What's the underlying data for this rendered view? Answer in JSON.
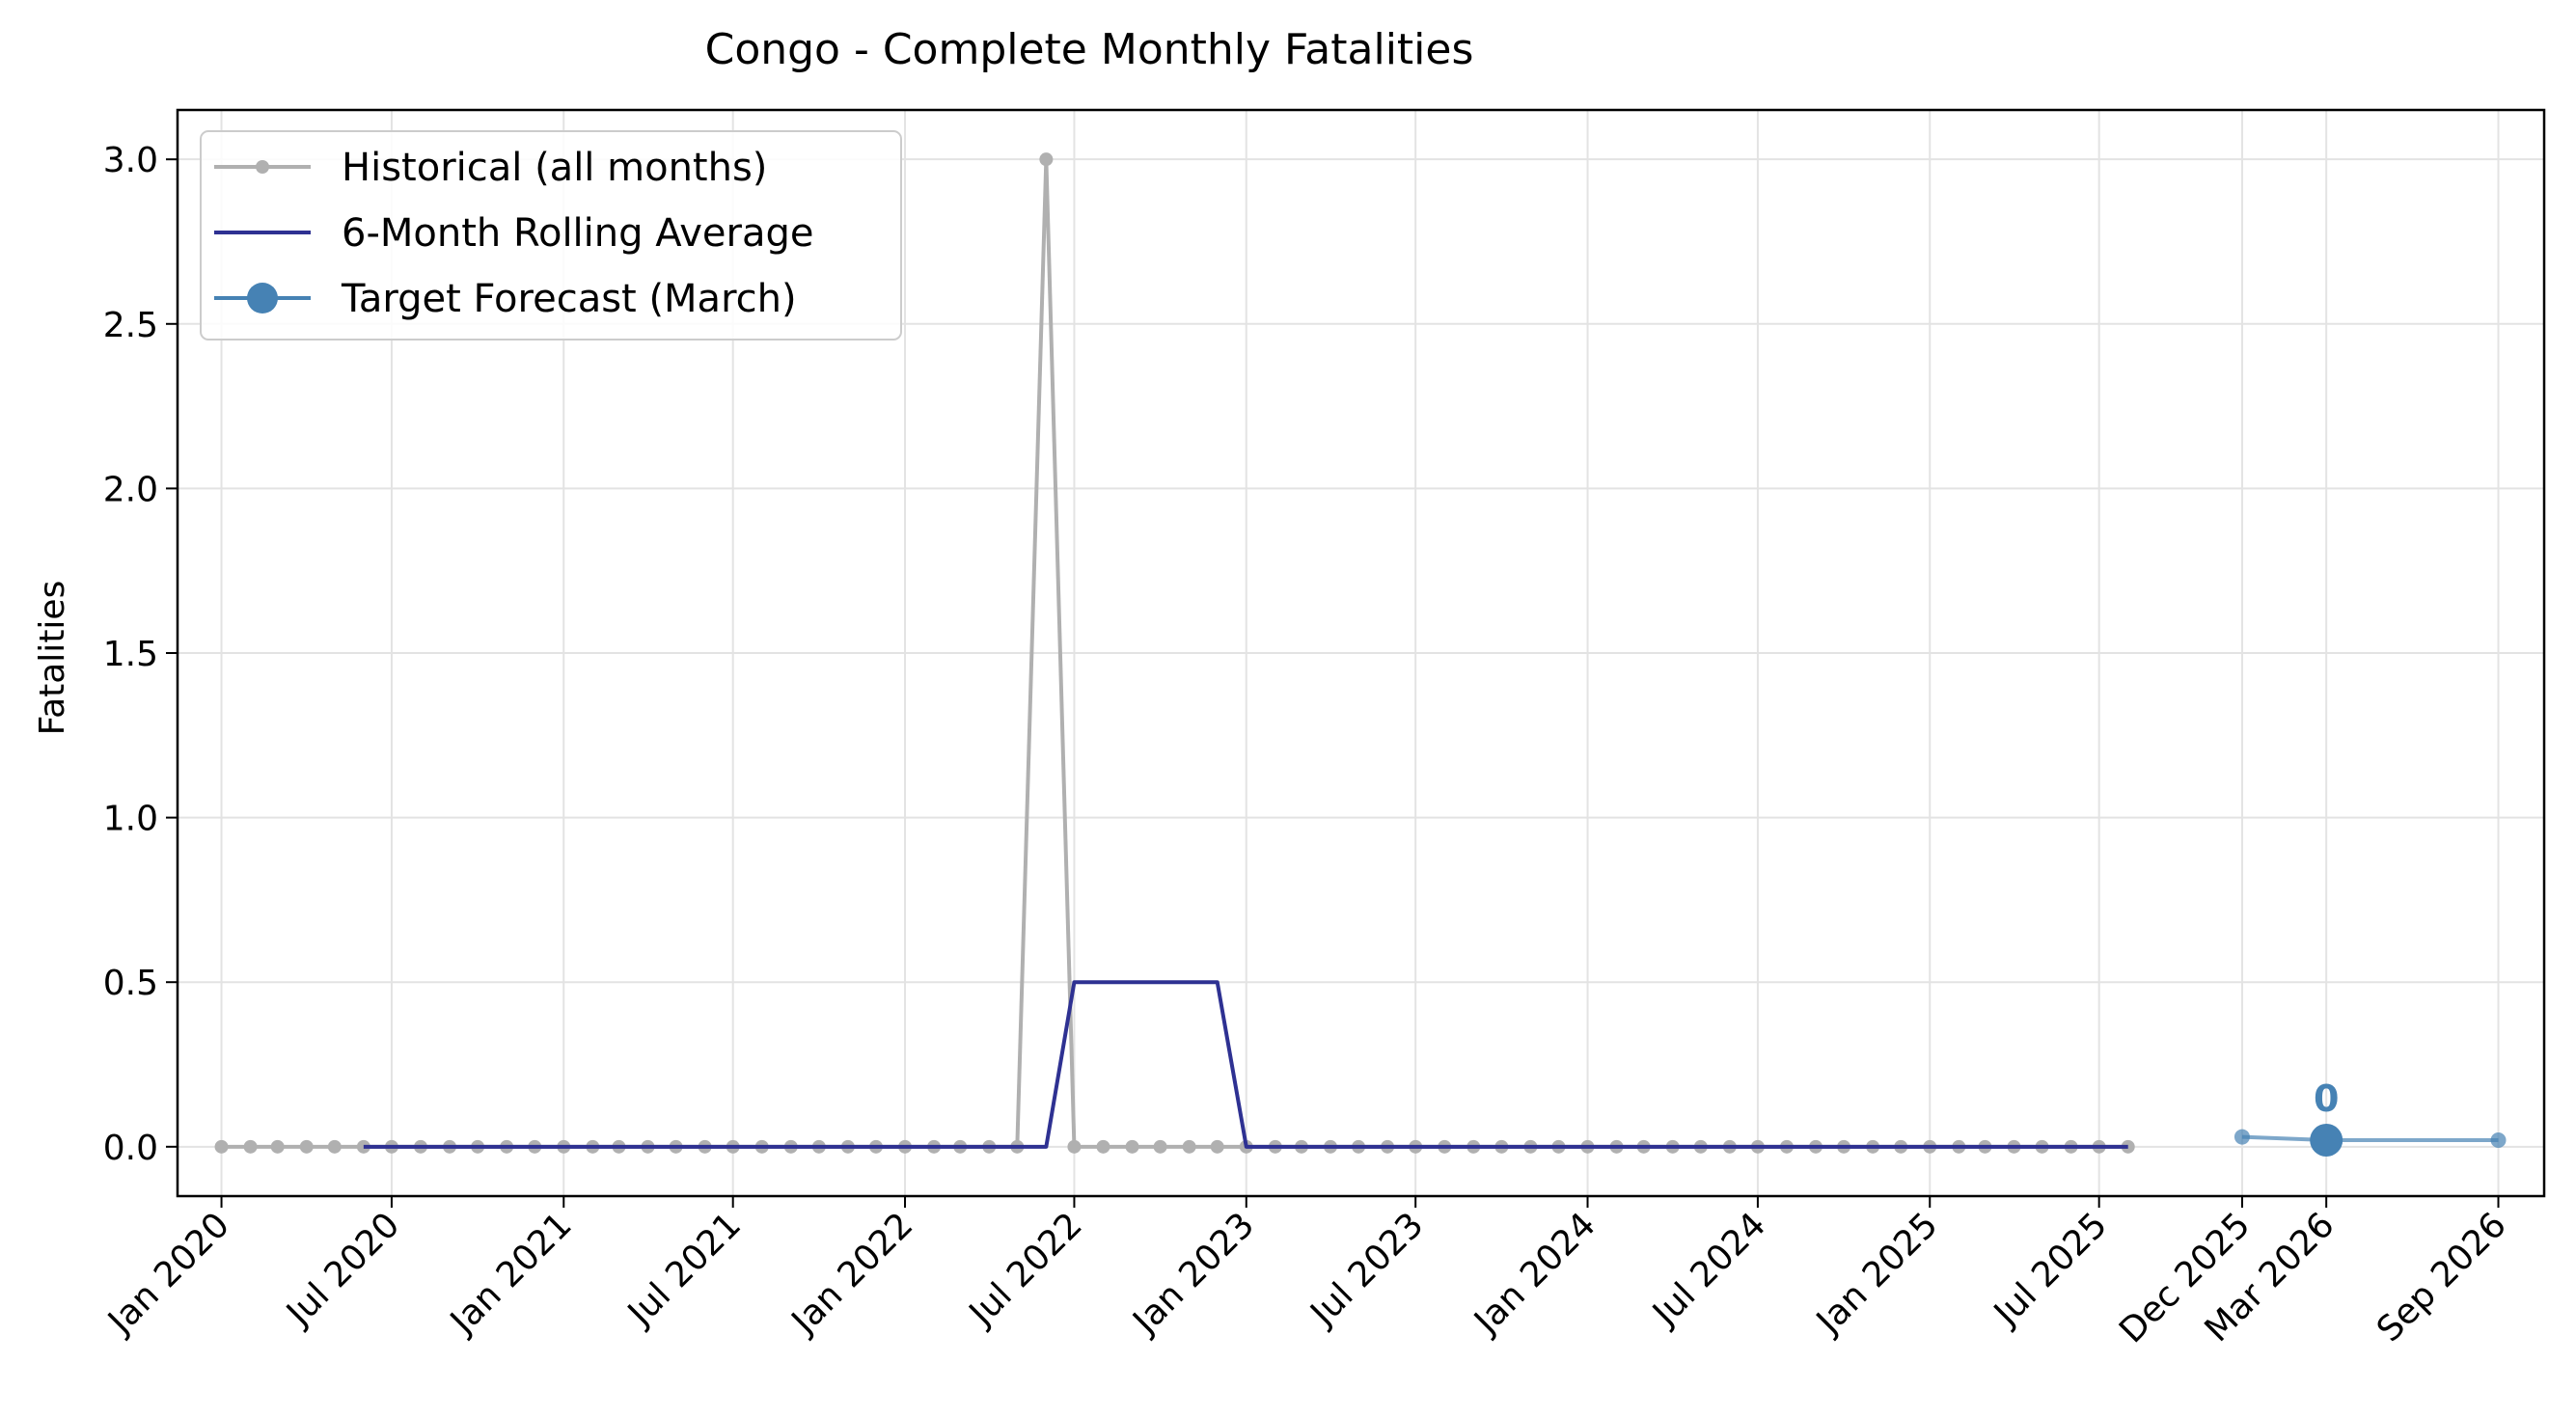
{
  "chart_data": {
    "type": "line",
    "title": "Congo - Complete Monthly Fatalities",
    "xlabel": "",
    "ylabel": "Fatalities",
    "ylim": [
      -0.15,
      3.15
    ],
    "xlim": [
      "2019-11-15",
      "2026-10-20"
    ],
    "grid": true,
    "legend_position": "top-left",
    "x_ticks": [
      {
        "date": "2020-01-01",
        "label": "Jan 2020"
      },
      {
        "date": "2020-07-01",
        "label": "Jul 2020"
      },
      {
        "date": "2021-01-01",
        "label": "Jan 2021"
      },
      {
        "date": "2021-07-01",
        "label": "Jul 2021"
      },
      {
        "date": "2022-01-01",
        "label": "Jan 2022"
      },
      {
        "date": "2022-07-01",
        "label": "Jul 2022"
      },
      {
        "date": "2023-01-01",
        "label": "Jan 2023"
      },
      {
        "date": "2023-07-01",
        "label": "Jul 2023"
      },
      {
        "date": "2024-01-01",
        "label": "Jan 2024"
      },
      {
        "date": "2024-07-01",
        "label": "Jul 2024"
      },
      {
        "date": "2025-01-01",
        "label": "Jan 2025"
      },
      {
        "date": "2025-07-01",
        "label": "Jul 2025"
      },
      {
        "date": "2025-12-01",
        "label": "Dec 2025"
      },
      {
        "date": "2026-03-01",
        "label": "Mar 2026"
      },
      {
        "date": "2026-09-01",
        "label": "Sep 2026"
      }
    ],
    "y_ticks": [
      {
        "value": 0.0,
        "label": "0.0"
      },
      {
        "value": 0.5,
        "label": "0.5"
      },
      {
        "value": 1.0,
        "label": "1.0"
      },
      {
        "value": 1.5,
        "label": "1.5"
      },
      {
        "value": 2.0,
        "label": "2.0"
      },
      {
        "value": 2.5,
        "label": "2.5"
      },
      {
        "value": 3.0,
        "label": "3.0"
      }
    ],
    "legend": [
      {
        "label": "Historical (all months)",
        "color": "#b0b0b0",
        "style": "line-dot"
      },
      {
        "label": "6-Month Rolling Average",
        "color": "#2e3192",
        "style": "line"
      },
      {
        "label": "Target Forecast (March)",
        "color": "#4682b4",
        "style": "line-bigdot"
      }
    ],
    "series": [
      {
        "name": "Historical (all months)",
        "color": "#b0b0b0",
        "x": [
          "2020-01",
          "2020-02",
          "2020-03",
          "2020-04",
          "2020-05",
          "2020-06",
          "2020-07",
          "2020-08",
          "2020-09",
          "2020-10",
          "2020-11",
          "2020-12",
          "2021-01",
          "2021-02",
          "2021-03",
          "2021-04",
          "2021-05",
          "2021-06",
          "2021-07",
          "2021-08",
          "2021-09",
          "2021-10",
          "2021-11",
          "2021-12",
          "2022-01",
          "2022-02",
          "2022-03",
          "2022-04",
          "2022-05",
          "2022-06",
          "2022-07",
          "2022-08",
          "2022-09",
          "2022-10",
          "2022-11",
          "2022-12",
          "2023-01",
          "2023-02",
          "2023-03",
          "2023-04",
          "2023-05",
          "2023-06",
          "2023-07",
          "2023-08",
          "2023-09",
          "2023-10",
          "2023-11",
          "2023-12",
          "2024-01",
          "2024-02",
          "2024-03",
          "2024-04",
          "2024-05",
          "2024-06",
          "2024-07",
          "2024-08",
          "2024-09",
          "2024-10",
          "2024-11",
          "2024-12",
          "2025-01",
          "2025-02",
          "2025-03",
          "2025-04",
          "2025-05",
          "2025-06",
          "2025-07",
          "2025-08"
        ],
        "y": [
          0,
          0,
          0,
          0,
          0,
          0,
          0,
          0,
          0,
          0,
          0,
          0,
          0,
          0,
          0,
          0,
          0,
          0,
          0,
          0,
          0,
          0,
          0,
          0,
          0,
          0,
          0,
          0,
          0,
          3,
          0,
          0,
          0,
          0,
          0,
          0,
          0,
          0,
          0,
          0,
          0,
          0,
          0,
          0,
          0,
          0,
          0,
          0,
          0,
          0,
          0,
          0,
          0,
          0,
          0,
          0,
          0,
          0,
          0,
          0,
          0,
          0,
          0,
          0,
          0,
          0,
          0,
          0
        ]
      },
      {
        "name": "6-Month Rolling Average",
        "color": "#2e3192",
        "x": [
          "2020-06",
          "2020-07",
          "2020-08",
          "2020-09",
          "2020-10",
          "2020-11",
          "2020-12",
          "2021-01",
          "2021-02",
          "2021-03",
          "2021-04",
          "2021-05",
          "2021-06",
          "2021-07",
          "2021-08",
          "2021-09",
          "2021-10",
          "2021-11",
          "2021-12",
          "2022-01",
          "2022-02",
          "2022-03",
          "2022-04",
          "2022-05",
          "2022-06",
          "2022-07",
          "2022-08",
          "2022-09",
          "2022-10",
          "2022-11",
          "2022-12",
          "2023-01",
          "2023-02",
          "2023-03",
          "2023-04",
          "2023-05",
          "2023-06",
          "2023-07",
          "2023-08",
          "2023-09",
          "2023-10",
          "2023-11",
          "2023-12",
          "2024-01",
          "2024-02",
          "2024-03",
          "2024-04",
          "2024-05",
          "2024-06",
          "2024-07",
          "2024-08",
          "2024-09",
          "2024-10",
          "2024-11",
          "2024-12",
          "2025-01",
          "2025-02",
          "2025-03",
          "2025-04",
          "2025-05",
          "2025-06",
          "2025-07",
          "2025-08"
        ],
        "y": [
          0,
          0,
          0,
          0,
          0,
          0,
          0,
          0,
          0,
          0,
          0,
          0,
          0,
          0,
          0,
          0,
          0,
          0,
          0,
          0,
          0,
          0,
          0,
          0,
          0,
          0.5,
          0.5,
          0.5,
          0.5,
          0.5,
          0.5,
          0,
          0,
          0,
          0,
          0,
          0,
          0,
          0,
          0,
          0,
          0,
          0,
          0,
          0,
          0,
          0,
          0,
          0,
          0,
          0,
          0,
          0,
          0,
          0,
          0,
          0,
          0,
          0,
          0,
          0,
          0,
          0
        ]
      },
      {
        "name": "Target Forecast (March)",
        "color": "#4682b4",
        "x": [
          "2025-12-01",
          "2026-03-01",
          "2026-09-01"
        ],
        "y": [
          0.03,
          0.02,
          0.02
        ],
        "target_x": "2026-03-01",
        "target_y": 0.02,
        "annotation": "0"
      }
    ]
  }
}
